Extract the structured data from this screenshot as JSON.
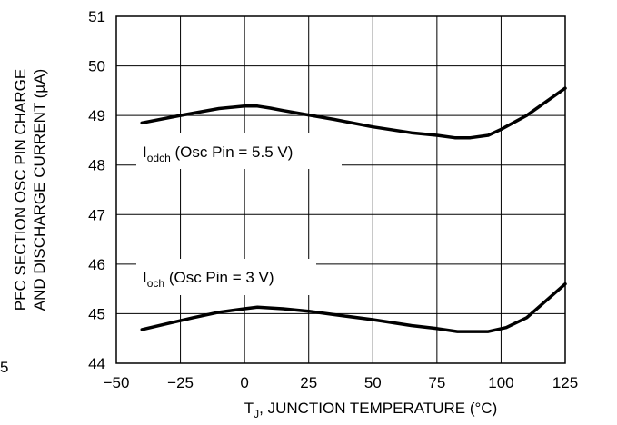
{
  "chart_data": {
    "type": "line",
    "xlabel": {
      "main": "T",
      "sub": "J",
      "rest": ", JUNCTION TEMPERATURE (°C)"
    },
    "ylabel": [
      "PFC SECTION OSC PIN CHARGE",
      "AND DISCHARGE CURRENT (µA)"
    ],
    "xlim": [
      -50,
      125
    ],
    "ylim": [
      44,
      51
    ],
    "x_ticks": [
      -50,
      -25,
      0,
      25,
      50,
      75,
      100,
      125
    ],
    "x_tick_labels": [
      "−50",
      "−25",
      "0",
      "25",
      "50",
      "75",
      "100",
      "125"
    ],
    "y_ticks": [
      44,
      45,
      46,
      47,
      48,
      49,
      50,
      51
    ],
    "y_tick_labels": [
      "44",
      "45",
      "46",
      "47",
      "48",
      "49",
      "50",
      "51"
    ],
    "grid": true,
    "series": [
      {
        "name": "I_odch (Osc Pin = 5.5 V)",
        "x": [
          -40,
          -25,
          -10,
          0,
          5,
          10,
          15,
          25,
          35,
          50,
          65,
          75,
          82,
          88,
          95,
          100,
          110,
          125
        ],
        "y": [
          48.85,
          49.0,
          49.14,
          49.19,
          49.19,
          49.15,
          49.1,
          49.01,
          48.92,
          48.77,
          48.65,
          48.6,
          48.55,
          48.55,
          48.6,
          48.72,
          49.0,
          49.55
        ]
      },
      {
        "name": "I_och (Osc Pin = 3 V)",
        "x": [
          -40,
          -30,
          -20,
          -10,
          0,
          5,
          15,
          25,
          35,
          50,
          65,
          75,
          83,
          95,
          102,
          110,
          125
        ],
        "y": [
          44.68,
          44.8,
          44.92,
          45.03,
          45.1,
          45.13,
          45.1,
          45.05,
          44.98,
          44.88,
          44.76,
          44.7,
          44.64,
          44.64,
          44.72,
          44.92,
          45.6
        ]
      }
    ],
    "annotations": [
      {
        "main": "I",
        "sub": "odch",
        "rest": " (Osc Pin = 5.5 V)"
      },
      {
        "main": "I",
        "sub": "och",
        "rest": " (Osc Pin = 3 V)"
      }
    ],
    "side_mark": "5"
  }
}
